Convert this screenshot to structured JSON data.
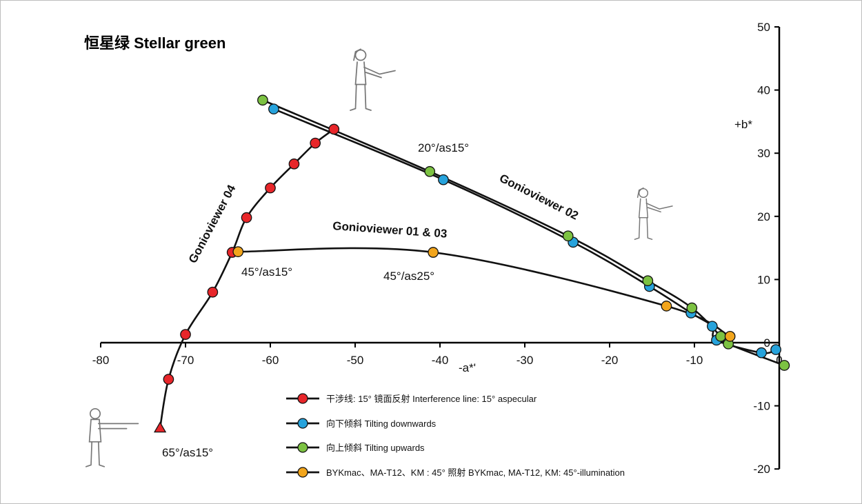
{
  "chart_data": {
    "type": "line",
    "title": "恒星绿 Stellar green",
    "xlabel": "-a*'",
    "ylabel": "+b*",
    "xlim": [
      -80,
      0
    ],
    "ylim": [
      -20,
      50
    ],
    "x_ticks": [
      -80,
      -70,
      -60,
      -50,
      -40,
      -30,
      -20,
      -10,
      0
    ],
    "y_ticks": [
      50,
      40,
      30,
      20,
      10,
      0,
      -10,
      -20
    ],
    "x_tick_labels": [
      "-80",
      "-70",
      "-60",
      "-50",
      "-40",
      "-30",
      "-20",
      "-10",
      "0"
    ],
    "y_tick_labels": [
      "50",
      "40",
      "30",
      "20",
      "10",
      "0",
      "-10",
      "-20"
    ],
    "grid": false,
    "legend_position": "bottom-center",
    "series": [
      {
        "name": "干涉线: 15° 镜面反射 Interference line: 15° aspecular",
        "color": "#e8262a",
        "points": [
          [
            -73,
            -13.5
          ],
          [
            -72,
            -5.8
          ],
          [
            -70,
            1.3
          ],
          [
            -66.8,
            8.0
          ],
          [
            -64.5,
            14.3
          ],
          [
            -62.8,
            19.8
          ],
          [
            -60,
            24.5
          ],
          [
            -57.2,
            28.3
          ],
          [
            -54.7,
            31.6
          ],
          [
            -52.5,
            33.8
          ]
        ],
        "end_marker": "triangle"
      },
      {
        "name": "向下倾斜 Tilting downwards",
        "color": "#27a3dc",
        "points": [
          [
            -59.6,
            37.0
          ],
          [
            -39.6,
            25.8
          ],
          [
            -24.3,
            15.9
          ],
          [
            -15.3,
            8.9
          ],
          [
            -10.4,
            4.7
          ],
          [
            -7.9,
            2.6
          ],
          [
            -7.4,
            0.4
          ],
          [
            -2.1,
            -1.6
          ],
          [
            -0.4,
            -1.1
          ]
        ]
      },
      {
        "name": "向上倾斜 Tilting upwards",
        "color": "#7cc242",
        "points": [
          [
            -60.9,
            38.4
          ],
          [
            -41.2,
            27.1
          ],
          [
            -24.9,
            16.9
          ],
          [
            -15.5,
            9.8
          ],
          [
            -10.3,
            5.5
          ],
          [
            -6.9,
            1.0
          ],
          [
            -6.0,
            -0.2
          ],
          [
            0.6,
            -3.6
          ]
        ]
      },
      {
        "name": "BYKmac、MA-T12、KM : 45° 照射 BYKmac, MA-T12, KM: 45°-illumination",
        "color": "#f2a51c",
        "points": [
          [
            -63.8,
            14.4
          ],
          [
            -40.8,
            14.3
          ],
          [
            -13.3,
            5.8
          ],
          [
            -5.8,
            1.0
          ]
        ]
      }
    ],
    "annotations": {
      "gv04": "Gonioviewer 04",
      "gv0103": "Gonioviewer 01 & 03",
      "gv02": "Gonioviewer 02",
      "a2015": "20°/as15°",
      "a4515": "45°/as15°",
      "a4525": "45°/as25°",
      "a6515": "65°/as15°"
    }
  }
}
